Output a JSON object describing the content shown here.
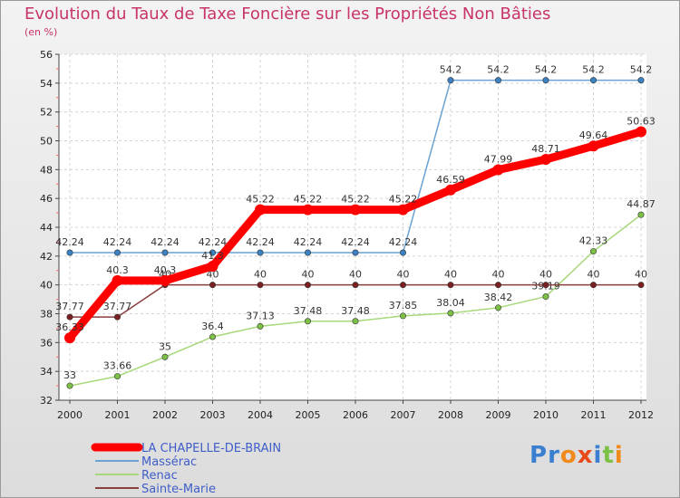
{
  "chart_data": {
    "type": "line",
    "title": "Evolution du Taux de Taxe Foncière sur les Propriétés Non Bâties",
    "unit_label": "(en %)",
    "categories": [
      "2000",
      "2001",
      "2002",
      "2003",
      "2004",
      "2005",
      "2006",
      "2007",
      "2008",
      "2009",
      "2010",
      "2011",
      "2012"
    ],
    "ylim": [
      32,
      56
    ],
    "yticks": [
      32,
      34,
      36,
      38,
      40,
      42,
      44,
      46,
      48,
      50,
      52,
      54,
      56
    ],
    "series": [
      {
        "name": "Massérac",
        "color": "#6aa2d2",
        "marker": "#3b82c4",
        "values": [
          42.24,
          42.24,
          42.24,
          42.24,
          42.24,
          42.24,
          42.24,
          42.24,
          54.2,
          54.2,
          54.2,
          54.2,
          54.2
        ],
        "labels": [
          "42.24",
          "42.24",
          "42.24",
          "42.24",
          "42.24",
          "42.24",
          "42.24",
          "42.24",
          "54.2",
          "54.2",
          "54.2",
          "54.2",
          "54.2"
        ]
      },
      {
        "name": "Renac",
        "color": "#a7d87a",
        "marker": "#7cc146",
        "values": [
          33,
          33.66,
          35,
          36.4,
          37.13,
          37.48,
          37.48,
          37.85,
          38.04,
          38.42,
          39.19,
          42.33,
          44.87
        ],
        "labels": [
          "33",
          "33.66",
          "35",
          "36.4",
          "37.13",
          "37.48",
          "37.48",
          "37.85",
          "38.04",
          "38.42",
          "39.19",
          "42.33",
          "44.87"
        ]
      },
      {
        "name": "Sainte-Marie",
        "color": "#8a3f3f",
        "marker": "#7a2020",
        "values": [
          37.77,
          37.77,
          40,
          40,
          40,
          40,
          40,
          40,
          40,
          40,
          40,
          40,
          40
        ],
        "labels": [
          "37.77",
          "37.77",
          "40",
          "40",
          "40",
          "40",
          "40",
          "40",
          "40",
          "40",
          "40",
          "40",
          "40"
        ]
      },
      {
        "name": "LA CHAPELLE-DE-BRAIN",
        "color": "#ff0000",
        "marker": "#ff0000",
        "values": [
          36.33,
          40.3,
          40.3,
          41.3,
          45.22,
          45.22,
          45.22,
          45.22,
          46.59,
          47.99,
          48.71,
          49.64,
          50.63
        ],
        "labels": [
          "36.33",
          "40.3",
          "40.3",
          "41.3",
          "45.22",
          "45.22",
          "45.22",
          "45.22",
          "46.59",
          "47.99",
          "48.71",
          "49.64",
          "50.63"
        ]
      }
    ],
    "legend": [
      "LA CHAPELLE-DE-BRAIN",
      "Massérac",
      "Renac",
      "Sainte-Marie"
    ]
  },
  "logo_text": "Proxiti"
}
